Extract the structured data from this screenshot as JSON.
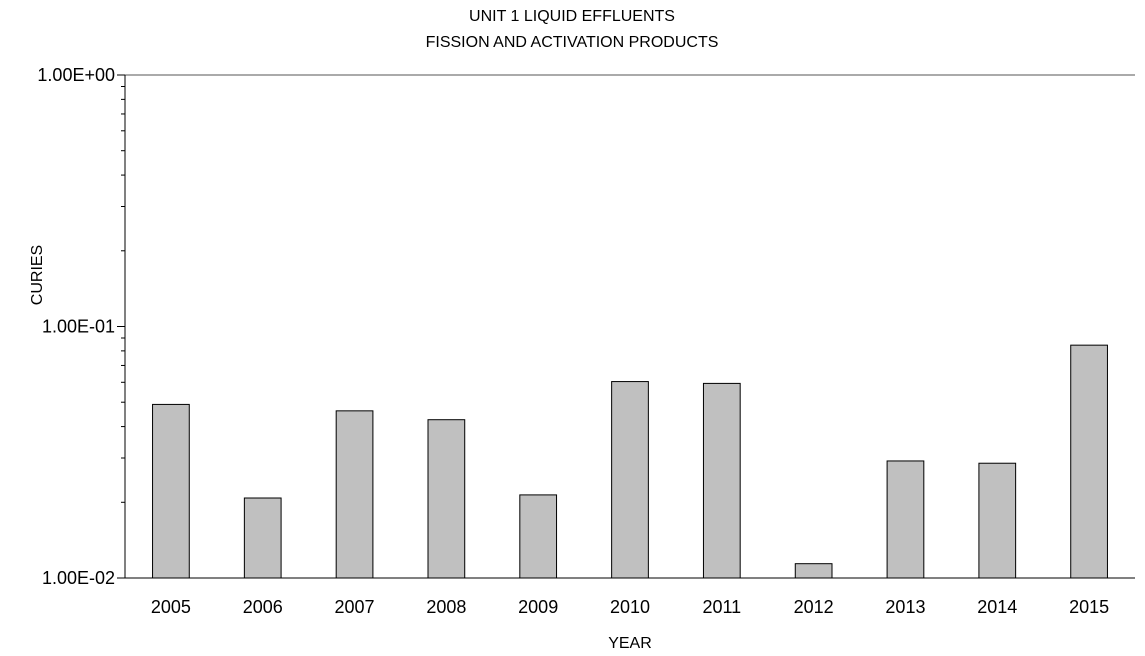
{
  "chart_data": {
    "type": "bar",
    "title": [
      "UNIT 1 LIQUID EFFLUENTS",
      "FISSION AND ACTIVATION PRODUCTS"
    ],
    "xlabel": "YEAR",
    "ylabel": "CURIES",
    "y_scale": "log",
    "ylim": [
      0.01,
      1.0
    ],
    "y_tick_labels": [
      "1.00E+00",
      "1.00E-01",
      "1.00E-02"
    ],
    "grid": false,
    "legend": "none",
    "categories": [
      "2005",
      "2006",
      "2007",
      "2008",
      "2009",
      "2010",
      "2011",
      "2012",
      "2013",
      "2014",
      "2015"
    ],
    "values": [
      0.049,
      0.0208,
      0.0462,
      0.0426,
      0.0214,
      0.0604,
      0.0594,
      0.0114,
      0.0292,
      0.0286,
      0.0843
    ],
    "bar_color": "#c0c0c0",
    "bar_edge_color": "#000000"
  }
}
